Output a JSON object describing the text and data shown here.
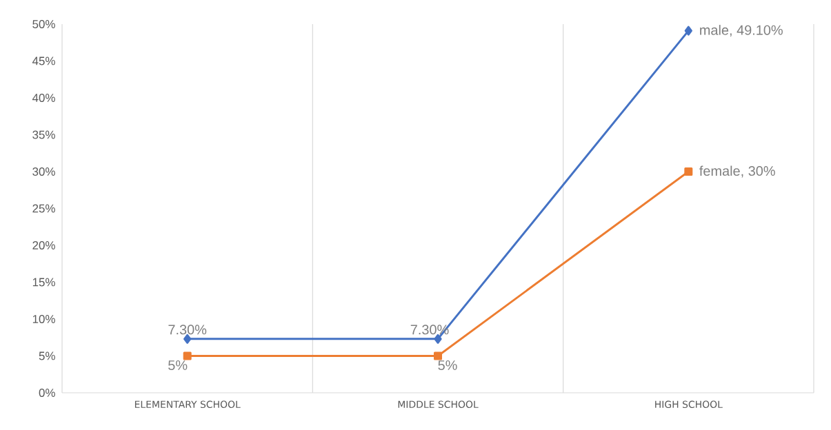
{
  "chart_data": {
    "type": "line",
    "categories": [
      "ELEMENTARY SCHOOL",
      "MIDDLE SCHOOL",
      "HIGH SCHOOL"
    ],
    "series": [
      {
        "color": "#4472c4",
        "marker": "diamond",
        "values": [
          7.3,
          7.3,
          49.1
        ],
        "value_labels": [
          "7.30%",
          "7.30%",
          "male, 49.10%"
        ]
      },
      {
        "color": "#ed7d31",
        "marker": "square",
        "values": [
          5,
          5,
          30
        ],
        "value_labels": [
          "5%",
          "5%",
          "female, 30%"
        ]
      }
    ],
    "ylim": [
      0,
      50
    ],
    "yticks": [
      {
        "value": 0,
        "label": "0%"
      },
      {
        "value": 5,
        "label": "5%"
      },
      {
        "value": 10,
        "label": "10%"
      },
      {
        "value": 15,
        "label": "15%"
      },
      {
        "value": 20,
        "label": "20%"
      },
      {
        "value": 25,
        "label": "25%"
      },
      {
        "value": 30,
        "label": "30%"
      },
      {
        "value": 35,
        "label": "35%"
      },
      {
        "value": 40,
        "label": "40%"
      },
      {
        "value": 45,
        "label": "45%"
      },
      {
        "value": 50,
        "label": "50%"
      }
    ],
    "grid": "x",
    "legend": false,
    "line_style": "solid"
  }
}
